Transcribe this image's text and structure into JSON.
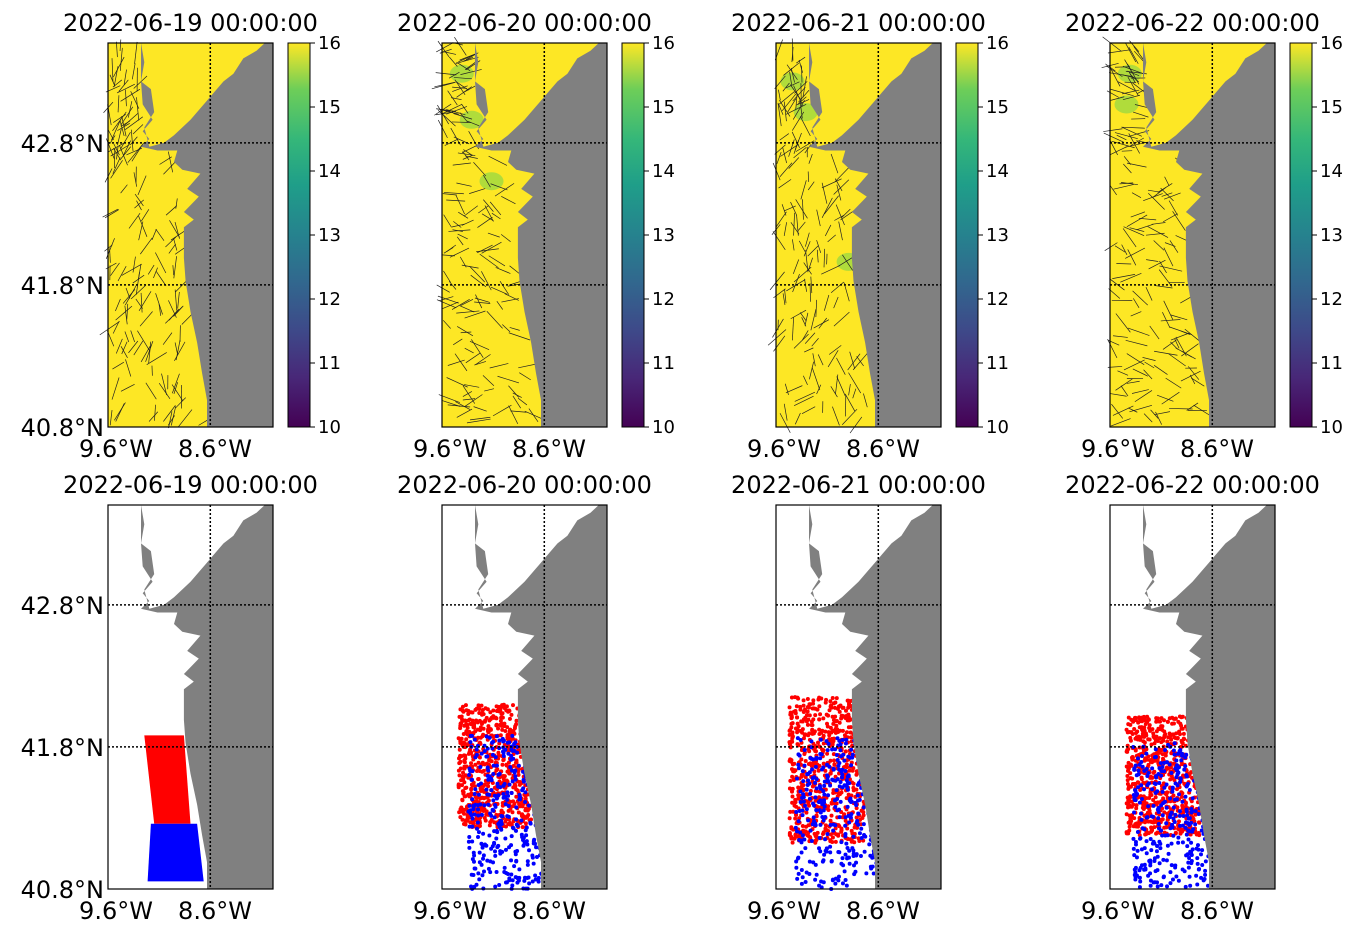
{
  "colors": {
    "ocean_high": "#fde725",
    "land": "#808080",
    "background": "#ffffff",
    "red_particles": "#ff0000",
    "blue_particles": "#0000ff",
    "gridline": "#000000"
  },
  "colormap": "viridis",
  "chart_data": {
    "type": "map_grid",
    "rows": 2,
    "cols": 4,
    "x_ticks": [
      "9.6°W",
      "8.6°W"
    ],
    "y_ticks": [
      "42.8°N",
      "41.8°N",
      "40.8°N"
    ],
    "lon_range": [
      -9.6,
      -8.6
    ],
    "lat_range": [
      40.8,
      43.5
    ],
    "colorbar": {
      "min": 10,
      "max": 16,
      "ticks": [
        "16",
        "15",
        "14",
        "13",
        "12",
        "11",
        "10"
      ]
    },
    "top_row": [
      {
        "title": "2022-06-19 00:00:00",
        "kind": "temperature with current vectors"
      },
      {
        "title": "2022-06-20 00:00:00",
        "kind": "temperature with current vectors"
      },
      {
        "title": "2022-06-21 00:00:00",
        "kind": "temperature with current vectors"
      },
      {
        "title": "2022-06-22 00:00:00",
        "kind": "temperature with current vectors"
      }
    ],
    "bottom_row": [
      {
        "title": "2022-06-19 00:00:00",
        "kind": "particle positions"
      },
      {
        "title": "2022-06-20 00:00:00",
        "kind": "particle positions"
      },
      {
        "title": "2022-06-21 00:00:00",
        "kind": "particle positions"
      },
      {
        "title": "2022-06-22 00:00:00",
        "kind": "particle positions"
      }
    ]
  }
}
